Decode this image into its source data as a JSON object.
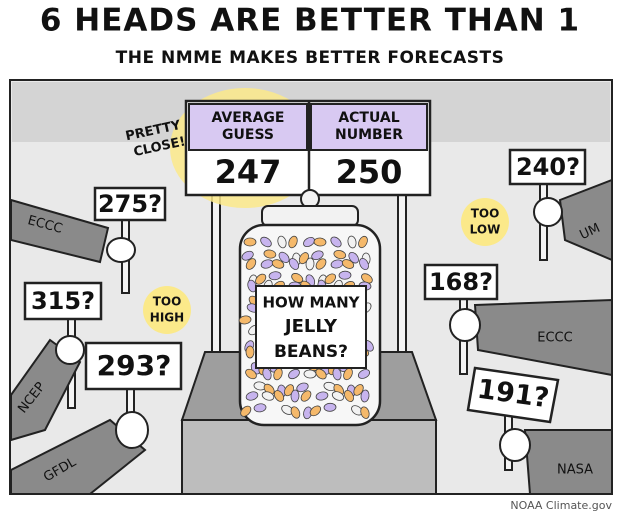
{
  "header": {
    "title": "6 HEADS ARE BETTER THAN 1",
    "subtitle": "THE NMME MAKES BETTER FORECASTS"
  },
  "board": {
    "average_label": [
      "AVERAGE",
      "GUESS"
    ],
    "average_value": "247",
    "actual_label": [
      "ACTUAL",
      "NUMBER"
    ],
    "actual_value": "250"
  },
  "callout": [
    "PRETTY",
    "CLOSE!"
  ],
  "jar_label": [
    "HOW MANY",
    "JELLY",
    "BEANS?"
  ],
  "guesses": [
    {
      "value": "275?",
      "model": "ECCC"
    },
    {
      "value": "315?",
      "model": "NCEP"
    },
    {
      "value": "293?",
      "model": "GFDL"
    },
    {
      "value": "240?",
      "model": "UM"
    },
    {
      "value": "168?",
      "model": "ECCC"
    },
    {
      "value": "191?",
      "model": "NASA"
    }
  ],
  "notes": {
    "too_high": [
      "TOO",
      "HIGH"
    ],
    "too_low": [
      "TOO",
      "LOW"
    ]
  },
  "credit": "NOAA Climate.gov"
}
